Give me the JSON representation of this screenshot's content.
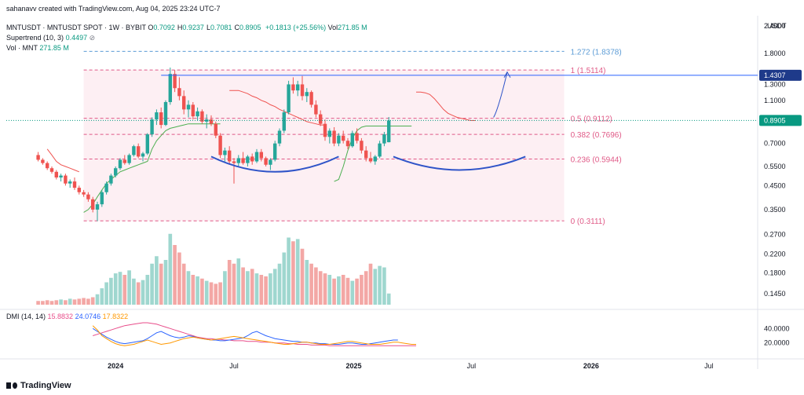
{
  "header": {
    "credit": "sahanavv created with TradingView.com, Aug 04, 2025 23:24 UTC-7",
    "symbol": "MNTUSDT · MNTUSDT SPOT · 1W · BYBIT",
    "ohlc": [
      {
        "label": "O",
        "value": "0.7092"
      },
      {
        "label": "H",
        "value": "0.9237"
      },
      {
        "label": "L",
        "value": "0.7081"
      },
      {
        "label": "C",
        "value": "0.8905"
      }
    ],
    "change": "+0.1813 (+25.56%)",
    "vol_label": "Vol",
    "vol_value": "271.85 M",
    "supertrend_label": "Supertrend (10, 3)",
    "supertrend_value": "0.4497",
    "supertrend_icon": "eye-slash-icon",
    "volume_label": "Vol · MNT",
    "volume_value": "271.85 M",
    "currency": "USDT"
  },
  "dmi": {
    "label": "DMI (14, 14)",
    "values": [
      "15.8832",
      "24.0746",
      "17.8322"
    ]
  },
  "brand": "TradingView",
  "colors": {
    "up": "#26a69a",
    "down": "#ef5350",
    "fib_pink": "#e05a87",
    "fib_blue": "#5b9bd5",
    "neckline": "#2962ff",
    "current": "#089981",
    "dmi_plus": "#e84d8a",
    "dmi_minus": "#2962ff",
    "adx": "#ff9800"
  },
  "chart_data": {
    "type": "candlestick",
    "timeframe": "1W",
    "y_scale": "log",
    "ylim": [
      0.125,
      2.5
    ],
    "y_ticks": [
      "2.4000",
      "1.8000",
      "1.3000",
      "1.1000",
      "0.7000",
      "0.5500",
      "0.4500",
      "0.3500",
      "0.2700",
      "0.2200",
      "0.1800",
      "0.1450"
    ],
    "x_ticks": [
      {
        "label": "2024",
        "date": "2024-01-01"
      },
      {
        "label": "Jul",
        "date": "2024-07-01"
      },
      {
        "label": "2025",
        "date": "2025-01-01"
      },
      {
        "label": "Jul",
        "date": "2025-07-01"
      },
      {
        "label": "2026",
        "date": "2026-01-01"
      },
      {
        "label": "Jul",
        "date": "2026-07-01"
      }
    ],
    "x_start": "2023-07-17",
    "x_end": "2026-09-14",
    "candle_start": "2023-09-04",
    "candles": [
      [
        0.62,
        0.64,
        0.58,
        0.59
      ],
      [
        0.59,
        0.6,
        0.56,
        0.57
      ],
      [
        0.57,
        0.58,
        0.53,
        0.54
      ],
      [
        0.54,
        0.55,
        0.51,
        0.52
      ],
      [
        0.52,
        0.53,
        0.48,
        0.49
      ],
      [
        0.49,
        0.51,
        0.47,
        0.5
      ],
      [
        0.5,
        0.51,
        0.45,
        0.46
      ],
      [
        0.46,
        0.48,
        0.44,
        0.47
      ],
      [
        0.47,
        0.49,
        0.43,
        0.44
      ],
      [
        0.44,
        0.45,
        0.41,
        0.42
      ],
      [
        0.42,
        0.43,
        0.4,
        0.41
      ],
      [
        0.41,
        0.42,
        0.38,
        0.39
      ],
      [
        0.39,
        0.4,
        0.34,
        0.35
      ],
      [
        0.35,
        0.38,
        0.31,
        0.37
      ],
      [
        0.37,
        0.43,
        0.36,
        0.42
      ],
      [
        0.42,
        0.47,
        0.41,
        0.46
      ],
      [
        0.46,
        0.51,
        0.45,
        0.5
      ],
      [
        0.5,
        0.55,
        0.49,
        0.54
      ],
      [
        0.54,
        0.6,
        0.53,
        0.59
      ],
      [
        0.59,
        0.62,
        0.56,
        0.57
      ],
      [
        0.57,
        0.63,
        0.56,
        0.62
      ],
      [
        0.62,
        0.69,
        0.61,
        0.68
      ],
      [
        0.68,
        0.7,
        0.6,
        0.61
      ],
      [
        0.61,
        0.64,
        0.58,
        0.63
      ],
      [
        0.63,
        0.78,
        0.62,
        0.77
      ],
      [
        0.77,
        0.92,
        0.75,
        0.9
      ],
      [
        0.9,
        1.0,
        0.85,
        0.97
      ],
      [
        0.97,
        1.02,
        0.82,
        0.85
      ],
      [
        0.85,
        1.1,
        0.84,
        1.08
      ],
      [
        1.08,
        1.55,
        1.05,
        1.45
      ],
      [
        1.45,
        1.51,
        1.2,
        1.25
      ],
      [
        1.25,
        1.4,
        1.1,
        1.15
      ],
      [
        1.15,
        1.22,
        0.95,
        1.0
      ],
      [
        1.0,
        1.1,
        0.92,
        1.05
      ],
      [
        1.05,
        1.08,
        0.9,
        0.93
      ],
      [
        0.93,
        1.02,
        0.89,
        0.98
      ],
      [
        0.98,
        1.0,
        0.86,
        0.88
      ],
      [
        0.88,
        0.95,
        0.82,
        0.9
      ],
      [
        0.9,
        0.94,
        0.84,
        0.86
      ],
      [
        0.86,
        0.88,
        0.74,
        0.76
      ],
      [
        0.76,
        0.78,
        0.6,
        0.62
      ],
      [
        0.62,
        0.67,
        0.58,
        0.65
      ],
      [
        0.65,
        0.68,
        0.56,
        0.58
      ],
      [
        0.58,
        0.6,
        0.46,
        0.57
      ],
      [
        0.57,
        0.62,
        0.55,
        0.6
      ],
      [
        0.6,
        0.64,
        0.56,
        0.57
      ],
      [
        0.57,
        0.62,
        0.55,
        0.61
      ],
      [
        0.61,
        0.63,
        0.56,
        0.58
      ],
      [
        0.58,
        0.66,
        0.57,
        0.64
      ],
      [
        0.64,
        0.66,
        0.58,
        0.6
      ],
      [
        0.6,
        0.61,
        0.55,
        0.56
      ],
      [
        0.56,
        0.6,
        0.53,
        0.59
      ],
      [
        0.59,
        0.72,
        0.58,
        0.7
      ],
      [
        0.7,
        0.82,
        0.68,
        0.8
      ],
      [
        0.8,
        1.0,
        0.78,
        0.97
      ],
      [
        0.97,
        1.35,
        0.95,
        1.3
      ],
      [
        1.3,
        1.4,
        1.18,
        1.22
      ],
      [
        1.22,
        1.35,
        1.15,
        1.3
      ],
      [
        1.3,
        1.42,
        1.1,
        1.15
      ],
      [
        1.15,
        1.25,
        1.08,
        1.2
      ],
      [
        1.2,
        1.22,
        1.02,
        1.05
      ],
      [
        1.05,
        1.1,
        0.92,
        0.95
      ],
      [
        0.95,
        0.99,
        0.84,
        0.86
      ],
      [
        0.86,
        0.9,
        0.72,
        0.75
      ],
      [
        0.75,
        0.82,
        0.7,
        0.8
      ],
      [
        0.8,
        0.83,
        0.68,
        0.7
      ],
      [
        0.7,
        0.78,
        0.68,
        0.76
      ],
      [
        0.76,
        0.8,
        0.7,
        0.72
      ],
      [
        0.72,
        0.74,
        0.66,
        0.68
      ],
      [
        0.68,
        0.8,
        0.67,
        0.78
      ],
      [
        0.78,
        0.82,
        0.7,
        0.72
      ],
      [
        0.72,
        0.74,
        0.63,
        0.65
      ],
      [
        0.65,
        0.68,
        0.58,
        0.6
      ],
      [
        0.6,
        0.64,
        0.57,
        0.58
      ],
      [
        0.58,
        0.62,
        0.56,
        0.61
      ],
      [
        0.61,
        0.72,
        0.6,
        0.7
      ],
      [
        0.7,
        0.79,
        0.68,
        0.77
      ],
      [
        0.7092,
        0.9237,
        0.7081,
        0.8905
      ]
    ],
    "current_price": 0.8905,
    "resistance_label": "1.4307",
    "resistance_price": 1.4307,
    "resistance_from": "2024-03-11",
    "fib_levels": [
      {
        "label": "1.272 (1.8378)",
        "price": 1.8378
      },
      {
        "label": "1 (1.5114)",
        "price": 1.5114
      },
      {
        "label": "0.5 (0.9112)",
        "price": 0.9112
      },
      {
        "label": "0.382 (0.7696)",
        "price": 0.7696
      },
      {
        "label": "0.236 (0.5944)",
        "price": 0.5944
      },
      {
        "label": "0 (0.3111)",
        "price": 0.3111
      }
    ],
    "fib_from": "2023-11-13",
    "fib_to": "2025-08-04",
    "annotations": [
      {
        "type": "arc",
        "from": "2024-05-27",
        "to": "2024-12-09",
        "price": 0.61,
        "dip": 0.52
      },
      {
        "type": "arc",
        "from": "2025-03-03",
        "to": "2025-09-22",
        "price": 0.61,
        "dip": 0.53
      },
      {
        "type": "arrow",
        "from_date": "2025-08-04",
        "from_price": 0.92,
        "to_date": "2025-08-25",
        "to_price": 1.48
      }
    ],
    "supertrend_down": [
      {
        "from": "2023-09-18",
        "to": "2023-11-06",
        "values": [
          0.66,
          0.62,
          0.58,
          0.56,
          0.55,
          0.54,
          0.53,
          0.52
        ]
      },
      {
        "from": "2024-06-24",
        "to": "2024-11-25",
        "values": [
          1.22,
          1.22,
          1.22,
          1.2,
          1.18,
          1.15,
          1.13,
          1.1,
          1.08,
          1.05,
          1.03,
          1.0,
          0.98,
          0.96,
          0.94,
          0.92,
          0.9,
          0.88,
          0.87,
          0.86,
          0.85,
          0.85
        ]
      },
      {
        "from": "2025-04-07",
        "to": "2025-07-07",
        "values": [
          1.2,
          1.2,
          1.19,
          1.17,
          1.12,
          1.06,
          1.0,
          0.96,
          0.94,
          0.92,
          0.91,
          0.9,
          0.89,
          0.89
        ]
      }
    ],
    "supertrend_up": [
      {
        "from": "2023-11-13",
        "to": "2024-06-17",
        "values": [
          0.34,
          0.35,
          0.37,
          0.4,
          0.43,
          0.46,
          0.48,
          0.5,
          0.52,
          0.53,
          0.54,
          0.55,
          0.56,
          0.57,
          0.58,
          0.66,
          0.72,
          0.76,
          0.8,
          0.82,
          0.83,
          0.84,
          0.85,
          0.86,
          0.86,
          0.86,
          0.86,
          0.86,
          0.86,
          0.86,
          0.86
        ]
      },
      {
        "from": "2024-12-02",
        "to": "2025-03-31",
        "values": [
          0.47,
          0.48,
          0.55,
          0.65,
          0.74,
          0.8,
          0.83,
          0.84,
          0.84,
          0.84,
          0.84,
          0.84,
          0.84,
          0.84,
          0.84,
          0.84,
          0.84,
          0.84
        ]
      }
    ],
    "volume": {
      "ylim": [
        0,
        100
      ],
      "values": [
        5,
        5,
        6,
        5,
        6,
        7,
        6,
        8,
        7,
        8,
        9,
        8,
        10,
        14,
        22,
        30,
        36,
        42,
        44,
        40,
        46,
        35,
        30,
        33,
        40,
        55,
        65,
        55,
        60,
        95,
        80,
        70,
        55,
        45,
        40,
        38,
        35,
        32,
        30,
        28,
        30,
        45,
        60,
        55,
        62,
        50,
        45,
        48,
        42,
        40,
        38,
        42,
        48,
        55,
        70,
        90,
        85,
        88,
        75,
        60,
        55,
        50,
        45,
        42,
        40,
        35,
        38,
        40,
        36,
        32,
        35,
        40,
        45,
        55,
        48,
        52,
        50,
        15
      ],
      "up_flags": [
        0,
        0,
        0,
        0,
        0,
        1,
        0,
        1,
        0,
        0,
        0,
        0,
        0,
        1,
        1,
        1,
        1,
        1,
        1,
        0,
        1,
        1,
        0,
        1,
        1,
        1,
        1,
        0,
        1,
        1,
        0,
        0,
        0,
        1,
        0,
        1,
        0,
        1,
        0,
        0,
        0,
        1,
        0,
        0,
        1,
        0,
        1,
        0,
        1,
        0,
        0,
        1,
        1,
        1,
        1,
        1,
        0,
        1,
        0,
        1,
        0,
        0,
        0,
        0,
        1,
        0,
        1,
        0,
        0,
        1,
        0,
        0,
        0,
        0,
        1,
        1,
        1,
        1
      ]
    },
    "dmi_series": {
      "ylim": [
        0,
        60
      ],
      "y_ticks": [
        "40.0000",
        "20.0000"
      ],
      "plus_di": [
        22,
        24,
        26,
        28,
        30,
        33,
        36,
        39,
        42,
        45,
        47,
        48,
        49,
        50,
        49,
        48,
        46,
        44,
        42,
        40,
        38,
        35,
        32,
        29,
        27,
        26,
        25,
        25,
        24,
        24,
        23,
        22,
        22,
        21,
        21,
        21,
        20,
        20,
        20,
        19,
        19,
        18,
        18,
        18,
        18,
        17,
        17,
        16,
        16,
        16,
        17,
        16
      ],
      "minus_di": [
        0,
        0,
        0,
        0,
        0,
        0,
        0,
        0,
        0,
        0,
        0,
        0,
        0,
        0,
        0,
        0,
        0,
        0,
        0,
        0,
        0,
        0,
        0,
        0,
        0,
        0,
        0,
        0,
        0,
        0,
        0,
        0,
        0,
        0,
        0,
        0,
        0,
        0,
        0,
        0,
        0,
        0,
        0,
        0,
        0,
        0,
        0,
        0,
        0,
        0,
        0,
        0
      ],
      "adx": [
        0,
        0,
        0,
        0,
        0,
        0,
        0,
        0,
        0,
        0,
        0,
        0,
        0,
        0,
        0,
        0,
        0,
        0,
        0,
        0,
        0,
        0,
        0,
        0,
        0,
        0,
        0,
        0,
        0,
        0,
        0,
        0,
        0,
        0,
        0,
        0,
        0,
        0,
        0,
        0,
        0,
        0,
        0,
        0,
        0,
        0,
        0,
        0,
        0,
        0,
        0,
        0
      ]
    },
    "dmi_lines": {
      "start": "2023-11-27",
      "plus_di": [
        30,
        32,
        34,
        36,
        38,
        40,
        42,
        44,
        45,
        46,
        47,
        48,
        48,
        47,
        46,
        44,
        42,
        40,
        38,
        36,
        34,
        32,
        30,
        28,
        27,
        26,
        26,
        25,
        25,
        24,
        24,
        23,
        23,
        23,
        22,
        22,
        22,
        21,
        21,
        21,
        20,
        20,
        20,
        19,
        19,
        18,
        18,
        18,
        17,
        17,
        17,
        17,
        16,
        16,
        16,
        16,
        16,
        16,
        16,
        16,
        16,
        16,
        16,
        16,
        16,
        16,
        16,
        16,
        16,
        16,
        16,
        16,
        16,
        16,
        16,
        16,
        16,
        16,
        16,
        16,
        16,
        16,
        16,
        16,
        16
      ],
      "minus_di": [
        40,
        36,
        32,
        28,
        25,
        22,
        20,
        19,
        20,
        21,
        22,
        23,
        26,
        30,
        34,
        36,
        33,
        30,
        28,
        27,
        28,
        30,
        29,
        27,
        26,
        25,
        24,
        24,
        23,
        23,
        24,
        25,
        26,
        27,
        30,
        34,
        36,
        33,
        30,
        28,
        26,
        25,
        24,
        23,
        22,
        22,
        21,
        21,
        20,
        20,
        19,
        19,
        18,
        18,
        18,
        19,
        20,
        20,
        19,
        18,
        18,
        19,
        20,
        21,
        22,
        23,
        24,
        24
      ],
      "adx": [
        44,
        38,
        30,
        26,
        22,
        19,
        17,
        16,
        17,
        18,
        20,
        22,
        24,
        22,
        20,
        18,
        19,
        20,
        22,
        24,
        26,
        27,
        28,
        27,
        26,
        25,
        24,
        25,
        26,
        27,
        28,
        29,
        28,
        27,
        26,
        25,
        24,
        23,
        22,
        21,
        20,
        19,
        18,
        18,
        19,
        20,
        21,
        21,
        20,
        19,
        18,
        18,
        18,
        19,
        20,
        21,
        22,
        22,
        21,
        20,
        19,
        18,
        18,
        18,
        19,
        20,
        21,
        21,
        20,
        19,
        18,
        18
      ]
    }
  }
}
